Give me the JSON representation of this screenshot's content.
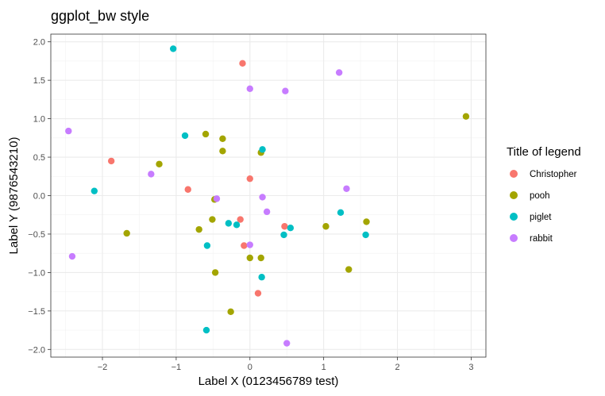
{
  "chart_data": {
    "type": "scatter",
    "title": "ggplot_bw style",
    "xlabel": "Label X (0123456789 test)",
    "ylabel": "Label Y (9876543210)",
    "xlim": [
      -2.7,
      3.2
    ],
    "ylim": [
      -2.1,
      2.1
    ],
    "x_ticks": [
      -2,
      -1,
      0,
      1,
      2,
      3
    ],
    "x_tick_labels": [
      "−2",
      "−1",
      "0",
      "1",
      "2",
      "3"
    ],
    "y_ticks": [
      -2,
      -1.5,
      -1,
      -0.5,
      0,
      0.5,
      1,
      1.5,
      2
    ],
    "y_tick_labels": [
      "−2.0",
      "−1.5",
      "−1.0",
      "−0.5",
      "0.0",
      "0.5",
      "1.0",
      "1.5",
      "2.0"
    ],
    "grid": true,
    "legend_title": "Title of legend",
    "legend_position": "right",
    "series": [
      {
        "name": "Christopher",
        "color": "#F8766D",
        "points": [
          [
            -0.1,
            1.72
          ],
          [
            -1.88,
            0.45
          ],
          [
            -0.84,
            0.08
          ],
          [
            0.0,
            0.22
          ],
          [
            -0.13,
            -0.31
          ],
          [
            0.47,
            -0.4
          ],
          [
            -0.08,
            -0.65
          ],
          [
            0.11,
            -1.27
          ]
        ]
      },
      {
        "name": "pooh",
        "color": "#A3A500",
        "points": [
          [
            2.93,
            1.03
          ],
          [
            -0.6,
            0.8
          ],
          [
            -0.37,
            0.74
          ],
          [
            -0.37,
            0.58
          ],
          [
            -1.23,
            0.41
          ],
          [
            0.15,
            0.56
          ],
          [
            -0.48,
            -0.05
          ],
          [
            -0.51,
            -0.31
          ],
          [
            -0.69,
            -0.44
          ],
          [
            -1.67,
            -0.49
          ],
          [
            1.03,
            -0.4
          ],
          [
            1.58,
            -0.34
          ],
          [
            0.0,
            -0.81
          ],
          [
            0.15,
            -0.81
          ],
          [
            -0.47,
            -1.0
          ],
          [
            1.34,
            -0.96
          ],
          [
            -0.26,
            -1.51
          ]
        ]
      },
      {
        "name": "piglet",
        "color": "#00BFC4",
        "points": [
          [
            -1.04,
            1.91
          ],
          [
            -0.88,
            0.78
          ],
          [
            0.17,
            0.6
          ],
          [
            -2.11,
            0.06
          ],
          [
            -0.29,
            -0.36
          ],
          [
            -0.18,
            -0.38
          ],
          [
            0.46,
            -0.51
          ],
          [
            0.55,
            -0.42
          ],
          [
            1.23,
            -0.22
          ],
          [
            1.57,
            -0.51
          ],
          [
            -0.58,
            -0.65
          ],
          [
            0.16,
            -1.06
          ],
          [
            -0.59,
            -1.75
          ]
        ]
      },
      {
        "name": "rabbit",
        "color": "#C77CFF",
        "points": [
          [
            1.21,
            1.6
          ],
          [
            0.0,
            1.39
          ],
          [
            0.48,
            1.36
          ],
          [
            -2.46,
            0.84
          ],
          [
            -1.34,
            0.28
          ],
          [
            -0.45,
            -0.04
          ],
          [
            0.17,
            -0.02
          ],
          [
            1.31,
            0.09
          ],
          [
            0.23,
            -0.21
          ],
          [
            0.0,
            -0.64
          ],
          [
            -2.41,
            -0.79
          ],
          [
            0.5,
            -1.92
          ]
        ]
      }
    ]
  }
}
